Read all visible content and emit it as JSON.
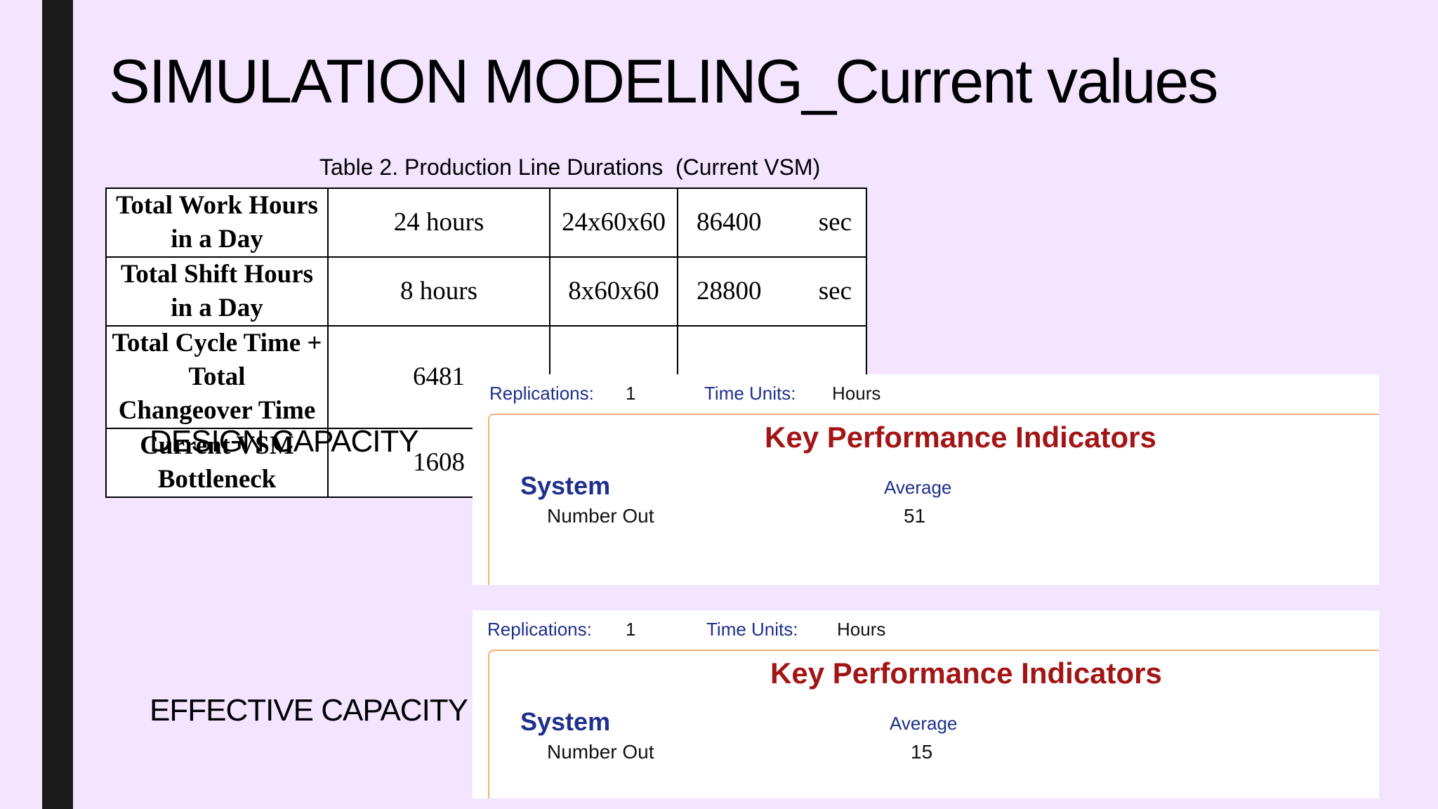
{
  "slide": {
    "title": "SIMULATION MODELING_Current values"
  },
  "table": {
    "caption": "Table 2. Production Line Durations  (Current VSM)",
    "rows": [
      {
        "label": "Total Work Hours in a Day",
        "hours": "24 hours",
        "formula": "24x60x60",
        "seconds": "86400",
        "unit": "sec"
      },
      {
        "label": "Total Shift Hours in a Day",
        "hours": "8 hours",
        "formula": "8x60x60",
        "seconds": "28800",
        "unit": "sec"
      },
      {
        "label_line1": "Total Cycle Time + Total",
        "label_line2": "Changeover Time",
        "hours": "6481",
        "formula": "",
        "seconds": "",
        "unit": ""
      },
      {
        "label": "Current VSM Bottleneck",
        "hours": "1608",
        "formula": "",
        "seconds": "",
        "unit": ""
      }
    ]
  },
  "design": {
    "label": "DESIGN CAPACITY",
    "report": {
      "replications_label": "Replications:",
      "replications_value": "1",
      "time_units_label": "Time Units:",
      "time_units_value": "Hours",
      "kpi_title": "Key Performance Indicators",
      "system_label": "System",
      "average_label": "Average",
      "metric_label": "Number Out",
      "metric_value": "51"
    }
  },
  "effective": {
    "label": "EFFECTIVE CAPACITY",
    "report": {
      "replications_label": "Replications:",
      "replications_value": "1",
      "time_units_label": "Time Units:",
      "time_units_value": "Hours",
      "kpi_title": "Key Performance Indicators",
      "system_label": "System",
      "average_label": "Average",
      "metric_label": "Number Out",
      "metric_value": "15"
    }
  }
}
